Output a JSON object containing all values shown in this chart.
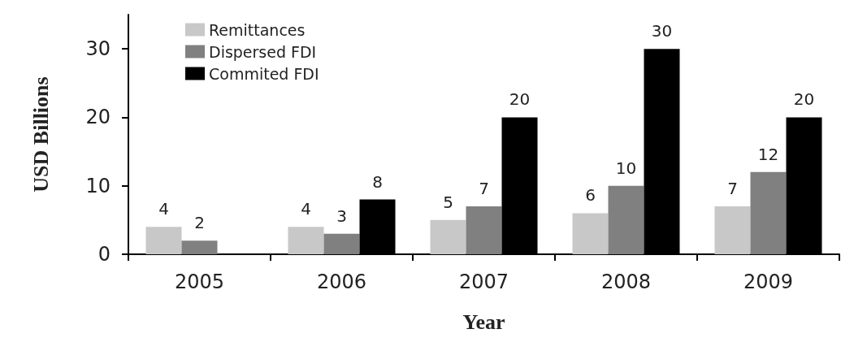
{
  "chart_data": {
    "type": "bar",
    "xlabel": "Year",
    "ylabel": "USD Billions",
    "categories": [
      "2005",
      "2006",
      "2007",
      "2008",
      "2009"
    ],
    "series": [
      {
        "name": "Remittances",
        "color": "#c8c8c8",
        "values": [
          4,
          4,
          5,
          6,
          7
        ]
      },
      {
        "name": "Dispersed FDI",
        "color": "#808080",
        "values": [
          2,
          3,
          7,
          10,
          12
        ]
      },
      {
        "name": "Commited FDI",
        "color": "#000000",
        "values": [
          null,
          8,
          20,
          30,
          20
        ]
      }
    ],
    "ylim": [
      0,
      35
    ],
    "yticks": [
      0,
      10,
      20,
      30
    ],
    "data_labels": true,
    "legend": "top left",
    "grid": false
  }
}
